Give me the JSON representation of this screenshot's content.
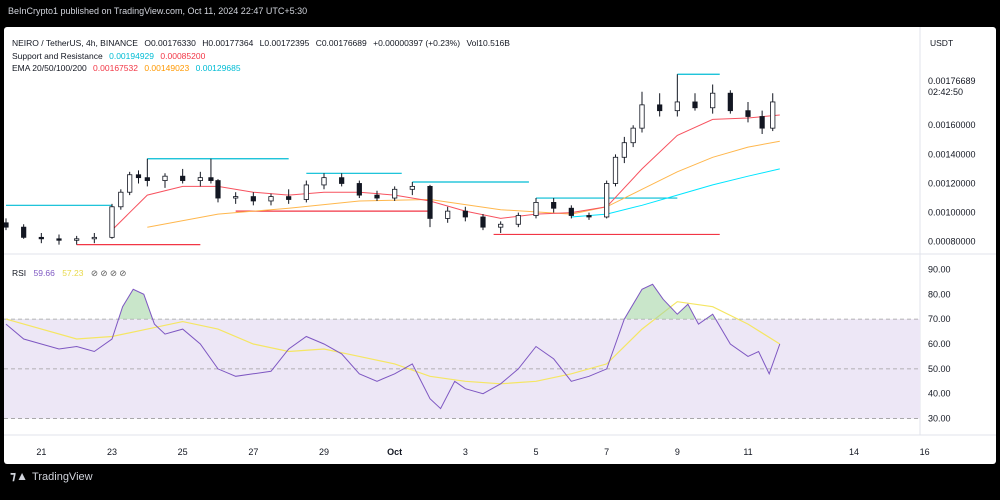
{
  "header": {
    "published_text": "BeInCrypto1 published on TradingView.com, Oct 11, 2024 22:47 UTC+5:30"
  },
  "legend": {
    "symbol": "NEIRO / TetherUS, 4h, BINANCE",
    "open": "O0.00176330",
    "high": "H0.00177364",
    "low": "L0.00172395",
    "close": "C0.00176689",
    "change": "+0.00000397 (+0.23%)",
    "volume": "Vol10.516B",
    "sr_label": "Support and Resistance",
    "sr_value_1": "0.00194929",
    "sr_value_2": "0.00085200",
    "ema_label": "EMA 20/50/100/200",
    "ema_value_1": "0.00167532",
    "ema_value_2": "0.00149023",
    "ema_value_3": "0.00129685",
    "rsi_label": "RSI",
    "rsi_value_1": "59.66",
    "rsi_value_2": "57.23",
    "settings_glyphs": "⊘ ⊘ ⊘ ⊘"
  },
  "currency": "USDT",
  "price_axis": {
    "last_price": "0.00176689",
    "countdown": "02:42:50",
    "ticks": [
      {
        "value": 0.0016,
        "label": "0.00160000"
      },
      {
        "value": 0.0014,
        "label": "0.00140000"
      },
      {
        "value": 0.0012,
        "label": "0.00120000"
      },
      {
        "value": 0.001,
        "label": "0.00100000"
      },
      {
        "value": 0.0008,
        "label": "0.00080000"
      }
    ]
  },
  "rsi_axis": {
    "ticks": [
      {
        "value": 90,
        "label": "90.00"
      },
      {
        "value": 80,
        "label": "80.00"
      },
      {
        "value": 70,
        "label": "70.00"
      },
      {
        "value": 60,
        "label": "60.00"
      },
      {
        "value": 50,
        "label": "50.00"
      },
      {
        "value": 40,
        "label": "40.00"
      },
      {
        "value": 30,
        "label": "30.00"
      }
    ]
  },
  "time_axis": {
    "ticks": [
      {
        "day": 21,
        "label": "21"
      },
      {
        "day": 23,
        "label": "23"
      },
      {
        "day": 25,
        "label": "25"
      },
      {
        "day": 27,
        "label": "27"
      },
      {
        "day": 29,
        "label": "29"
      },
      {
        "day": 31,
        "label": "Oct"
      },
      {
        "day": 33,
        "label": "3"
      },
      {
        "day": 35,
        "label": "5"
      },
      {
        "day": 37,
        "label": "7"
      },
      {
        "day": 39,
        "label": "9"
      },
      {
        "day": 41,
        "label": "11"
      },
      {
        "day": 44,
        "label": "14"
      },
      {
        "day": 46,
        "label": "16"
      }
    ]
  },
  "footer": {
    "brand": "TradingView",
    "logo_icon": "tradingview-logo-icon"
  },
  "colors": {
    "candle": "#131722",
    "support": "#f23645",
    "resistance": "#00bcd4",
    "ema20": "#f7525f",
    "ema50": "#ffb74d",
    "ema100": "#ffa726",
    "ema200": "#00e5ff",
    "rsi": "#7e57c2",
    "rsi_ma": "#f5e663",
    "rsi_band": "#ede7f6"
  },
  "chart_data": {
    "type": "candlestick",
    "x_unit": "day (Sep 20 = 20, Oct 1 = 31)",
    "price_ylim": [
      0.00075,
      0.002
    ],
    "rsi_ylim": [
      25,
      95
    ],
    "candles": [
      {
        "x": 20.0,
        "o": 0.00093,
        "h": 0.00096,
        "l": 0.00088,
        "c": 0.0009
      },
      {
        "x": 20.5,
        "o": 0.0009,
        "h": 0.00092,
        "l": 0.00082,
        "c": 0.00083
      },
      {
        "x": 21.0,
        "o": 0.00083,
        "h": 0.00086,
        "l": 0.00079,
        "c": 0.00082
      },
      {
        "x": 21.5,
        "o": 0.00082,
        "h": 0.00085,
        "l": 0.00078,
        "c": 0.00081
      },
      {
        "x": 22.0,
        "o": 0.00081,
        "h": 0.00084,
        "l": 0.00078,
        "c": 0.00082
      },
      {
        "x": 22.5,
        "o": 0.00082,
        "h": 0.00086,
        "l": 0.00079,
        "c": 0.00083
      },
      {
        "x": 23.0,
        "o": 0.00083,
        "h": 0.00106,
        "l": 0.00082,
        "c": 0.00104
      },
      {
        "x": 23.25,
        "o": 0.00104,
        "h": 0.00116,
        "l": 0.00102,
        "c": 0.00114
      },
      {
        "x": 23.5,
        "o": 0.00114,
        "h": 0.00128,
        "l": 0.00112,
        "c": 0.00126
      },
      {
        "x": 23.75,
        "o": 0.00126,
        "h": 0.00129,
        "l": 0.0012,
        "c": 0.00124
      },
      {
        "x": 24.0,
        "o": 0.00124,
        "h": 0.00137,
        "l": 0.00118,
        "c": 0.00122
      },
      {
        "x": 24.5,
        "o": 0.00122,
        "h": 0.00127,
        "l": 0.00117,
        "c": 0.00125
      },
      {
        "x": 25.0,
        "o": 0.00125,
        "h": 0.0013,
        "l": 0.0012,
        "c": 0.00122
      },
      {
        "x": 25.5,
        "o": 0.00122,
        "h": 0.00128,
        "l": 0.00118,
        "c": 0.00124
      },
      {
        "x": 25.8,
        "o": 0.00124,
        "h": 0.00137,
        "l": 0.0012,
        "c": 0.00122
      },
      {
        "x": 26.0,
        "o": 0.00122,
        "h": 0.00123,
        "l": 0.00107,
        "c": 0.0011
      },
      {
        "x": 26.5,
        "o": 0.0011,
        "h": 0.00114,
        "l": 0.00106,
        "c": 0.00111
      },
      {
        "x": 27.0,
        "o": 0.00111,
        "h": 0.00114,
        "l": 0.00105,
        "c": 0.00108
      },
      {
        "x": 27.5,
        "o": 0.00108,
        "h": 0.00113,
        "l": 0.00105,
        "c": 0.00111
      },
      {
        "x": 28.0,
        "o": 0.00111,
        "h": 0.00116,
        "l": 0.00106,
        "c": 0.00109
      },
      {
        "x": 28.5,
        "o": 0.00109,
        "h": 0.00122,
        "l": 0.00107,
        "c": 0.00119
      },
      {
        "x": 29.0,
        "o": 0.00119,
        "h": 0.00127,
        "l": 0.00116,
        "c": 0.00124
      },
      {
        "x": 29.5,
        "o": 0.00124,
        "h": 0.00127,
        "l": 0.00118,
        "c": 0.0012
      },
      {
        "x": 30.0,
        "o": 0.0012,
        "h": 0.00122,
        "l": 0.0011,
        "c": 0.00112
      },
      {
        "x": 30.5,
        "o": 0.00112,
        "h": 0.00115,
        "l": 0.00108,
        "c": 0.0011
      },
      {
        "x": 31.0,
        "o": 0.0011,
        "h": 0.00118,
        "l": 0.00108,
        "c": 0.00116
      },
      {
        "x": 31.5,
        "o": 0.00116,
        "h": 0.00121,
        "l": 0.00112,
        "c": 0.00118
      },
      {
        "x": 32.0,
        "o": 0.00118,
        "h": 0.00119,
        "l": 0.0009,
        "c": 0.00096
      },
      {
        "x": 32.5,
        "o": 0.00096,
        "h": 0.00104,
        "l": 0.00093,
        "c": 0.00101
      },
      {
        "x": 33.0,
        "o": 0.00101,
        "h": 0.00104,
        "l": 0.00094,
        "c": 0.00097
      },
      {
        "x": 33.5,
        "o": 0.00097,
        "h": 0.00099,
        "l": 0.00088,
        "c": 0.0009
      },
      {
        "x": 34.0,
        "o": 0.0009,
        "h": 0.00094,
        "l": 0.00086,
        "c": 0.00092
      },
      {
        "x": 34.5,
        "o": 0.00092,
        "h": 0.001,
        "l": 0.0009,
        "c": 0.00098
      },
      {
        "x": 35.0,
        "o": 0.00098,
        "h": 0.0011,
        "l": 0.00096,
        "c": 0.00107
      },
      {
        "x": 35.5,
        "o": 0.00107,
        "h": 0.0011,
        "l": 0.001,
        "c": 0.00103
      },
      {
        "x": 36.0,
        "o": 0.00103,
        "h": 0.00105,
        "l": 0.00096,
        "c": 0.00098
      },
      {
        "x": 36.5,
        "o": 0.00098,
        "h": 0.001,
        "l": 0.00095,
        "c": 0.00097
      },
      {
        "x": 37.0,
        "o": 0.00097,
        "h": 0.00122,
        "l": 0.00096,
        "c": 0.0012
      },
      {
        "x": 37.25,
        "o": 0.0012,
        "h": 0.0014,
        "l": 0.00118,
        "c": 0.00138
      },
      {
        "x": 37.5,
        "o": 0.00138,
        "h": 0.00152,
        "l": 0.00134,
        "c": 0.00148
      },
      {
        "x": 37.75,
        "o": 0.00148,
        "h": 0.0016,
        "l": 0.00145,
        "c": 0.00158
      },
      {
        "x": 38.0,
        "o": 0.00158,
        "h": 0.00183,
        "l": 0.00155,
        "c": 0.00174
      },
      {
        "x": 38.5,
        "o": 0.00174,
        "h": 0.00182,
        "l": 0.00166,
        "c": 0.0017
      },
      {
        "x": 39.0,
        "o": 0.0017,
        "h": 0.00195,
        "l": 0.00166,
        "c": 0.00176
      },
      {
        "x": 39.5,
        "o": 0.00176,
        "h": 0.00182,
        "l": 0.0017,
        "c": 0.00172
      },
      {
        "x": 40.0,
        "o": 0.00172,
        "h": 0.00188,
        "l": 0.00168,
        "c": 0.00182
      },
      {
        "x": 40.5,
        "o": 0.00182,
        "h": 0.00184,
        "l": 0.00168,
        "c": 0.0017
      },
      {
        "x": 41.0,
        "o": 0.0017,
        "h": 0.00176,
        "l": 0.00162,
        "c": 0.00166
      },
      {
        "x": 41.4,
        "o": 0.00166,
        "h": 0.0017,
        "l": 0.00154,
        "c": 0.00158
      },
      {
        "x": 41.7,
        "o": 0.00158,
        "h": 0.00182,
        "l": 0.00156,
        "c": 0.00176
      }
    ],
    "resistance_lines": [
      {
        "x1": 20.0,
        "x2": 23.0,
        "y": 0.00105
      },
      {
        "x1": 24.0,
        "x2": 28.0,
        "y": 0.00137
      },
      {
        "x1": 28.5,
        "x2": 31.2,
        "y": 0.00127
      },
      {
        "x1": 31.5,
        "x2": 34.8,
        "y": 0.00121
      },
      {
        "x1": 35.0,
        "x2": 39.0,
        "y": 0.0011
      },
      {
        "x1": 39.0,
        "x2": 40.2,
        "y": 0.00195
      }
    ],
    "support_lines": [
      {
        "x1": 22.0,
        "x2": 25.5,
        "y": 0.00078
      },
      {
        "x1": 26.5,
        "x2": 32.0,
        "y": 0.00101
      },
      {
        "x1": 33.8,
        "x2": 40.2,
        "y": 0.00085
      }
    ],
    "ema20": {
      "x": [
        23,
        24,
        25,
        26,
        27,
        28,
        29,
        30,
        31,
        32,
        33,
        34,
        35,
        36,
        37,
        38,
        39,
        40,
        41,
        41.9
      ],
      "y": [
        0.00088,
        0.00112,
        0.00118,
        0.00118,
        0.00114,
        0.00112,
        0.00114,
        0.00114,
        0.00112,
        0.00108,
        0.00101,
        0.00096,
        0.00099,
        0.001,
        0.00104,
        0.0013,
        0.00153,
        0.00164,
        0.00165,
        0.00167
      ]
    },
    "ema50": {
      "x": [
        24,
        26,
        28,
        30,
        32,
        34,
        36,
        37,
        38,
        39,
        40,
        41,
        41.9
      ],
      "y": [
        0.0009,
        0.00099,
        0.00103,
        0.00108,
        0.00109,
        0.00102,
        0.00099,
        0.00104,
        0.00116,
        0.00128,
        0.00138,
        0.00145,
        0.00149
      ]
    },
    "ema200": {
      "x": [
        36,
        37,
        38,
        39,
        40,
        41,
        41.9
      ],
      "y": [
        0.00097,
        0.00099,
        0.00105,
        0.00112,
        0.00119,
        0.00125,
        0.0013
      ]
    },
    "rsi": {
      "x": [
        20,
        20.5,
        21,
        21.5,
        22,
        22.5,
        23,
        23.3,
        23.6,
        23.9,
        24.2,
        24.5,
        25,
        25.5,
        26,
        26.5,
        27,
        27.5,
        28,
        28.5,
        29,
        29.5,
        30,
        30.5,
        31,
        31.5,
        32,
        32.3,
        32.7,
        33,
        33.5,
        34,
        34.5,
        35,
        35.5,
        36,
        36.5,
        37,
        37.5,
        38,
        38.3,
        38.6,
        39,
        39.3,
        39.6,
        40,
        40.5,
        41,
        41.3,
        41.6,
        41.9
      ],
      "y": [
        68,
        62,
        60,
        58,
        59,
        57,
        62,
        75,
        82,
        80,
        68,
        64,
        66,
        60,
        50,
        47,
        48,
        49,
        58,
        63,
        60,
        56,
        48,
        45,
        48,
        52,
        38,
        34,
        45,
        42,
        40,
        44,
        50,
        59,
        54,
        45,
        47,
        50,
        70,
        82,
        84,
        78,
        72,
        76,
        68,
        72,
        60,
        55,
        57,
        48,
        60
      ]
    },
    "rsi_ma": {
      "x": [
        20,
        22,
        23,
        24,
        25,
        26,
        27,
        28,
        29,
        30,
        31,
        32,
        33,
        34,
        35,
        36,
        37,
        38,
        39,
        40,
        41,
        41.9
      ],
      "y": [
        70,
        62,
        63,
        66,
        69,
        66,
        60,
        57,
        58,
        55,
        52,
        47,
        45,
        44,
        45,
        48,
        52,
        66,
        77,
        75,
        68,
        60
      ]
    }
  }
}
